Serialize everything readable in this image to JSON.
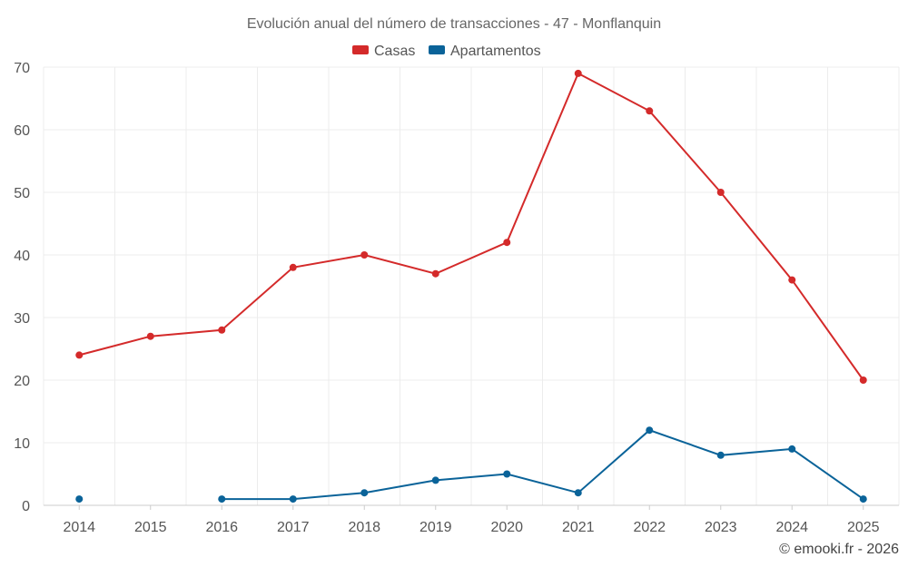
{
  "chart_data": {
    "type": "line",
    "title": "Evolución anual del número de transacciones - 47 - Monflanquin",
    "categories": [
      "2014",
      "2015",
      "2016",
      "2017",
      "2018",
      "2019",
      "2020",
      "2021",
      "2022",
      "2023",
      "2024",
      "2025"
    ],
    "series": [
      {
        "name": "Casas",
        "color": "#d42a2a",
        "values": [
          24,
          27,
          28,
          38,
          40,
          37,
          42,
          69,
          63,
          50,
          36,
          20
        ]
      },
      {
        "name": "Apartamentos",
        "color": "#0a6399",
        "values": [
          1,
          null,
          1,
          1,
          2,
          4,
          5,
          2,
          12,
          8,
          9,
          1
        ]
      }
    ],
    "ylim": [
      0,
      70
    ],
    "yticks": [
      0,
      10,
      20,
      30,
      40,
      50,
      60,
      70
    ],
    "grid": true,
    "legend": "top-center",
    "xlabel": "",
    "ylabel": ""
  },
  "credit": "© emooki.fr - 2026"
}
